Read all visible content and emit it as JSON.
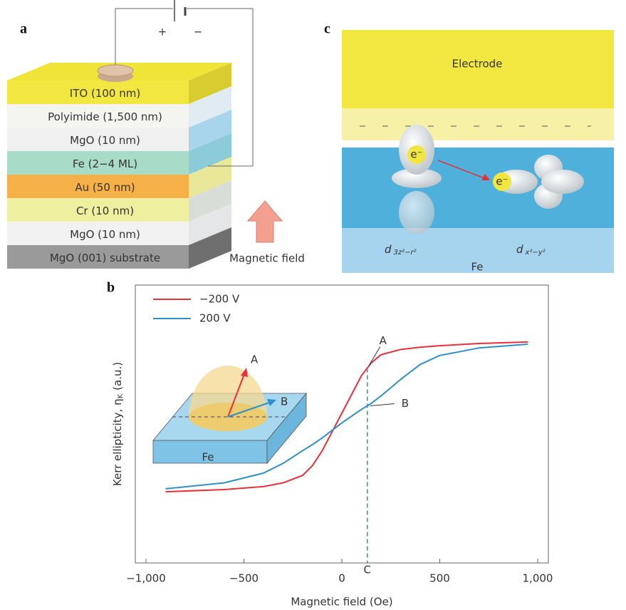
{
  "panel_a": {
    "label": "a",
    "layers": [
      "ITO (100 nm)",
      "Polyimide (1,500 nm)",
      "MgO (10 nm)",
      "Fe (2−4 ML)",
      "Au (50 nm)",
      "Cr (10 nm)",
      "MgO (10 nm)",
      "MgO (001) substrate"
    ],
    "plus": "+",
    "minus": "−",
    "arrow_label": "Magnetic field"
  },
  "panel_c": {
    "label": "c",
    "electrode": "Electrode",
    "electron_left": "e⁻",
    "electron_right": "e⁻",
    "orbital_left": {
      "symbol": "d",
      "subscript": "3z²−r²"
    },
    "orbital_right": {
      "symbol": "d",
      "subscript": "x²−y²"
    },
    "substrate": "Fe"
  },
  "chart_data": {
    "type": "line",
    "panel_label": "b",
    "xlabel": "Magnetic field (Oe)",
    "ylabel": "Kerr ellipticity, η",
    "ylabel_subscript": "K",
    "ylabel_unit": "(a.u.)",
    "x": [
      -900,
      -600,
      -400,
      -300,
      -200,
      -150,
      -100,
      -50,
      0,
      50,
      100,
      150,
      200,
      300,
      400,
      500,
      700,
      950
    ],
    "series": [
      {
        "name": "−200 V",
        "color": "#e8303a",
        "values": [
          -1.0,
          -0.97,
          -0.93,
          -0.88,
          -0.78,
          -0.65,
          -0.45,
          -0.2,
          0.05,
          0.3,
          0.55,
          0.72,
          0.83,
          0.9,
          0.93,
          0.95,
          0.98,
          1.0
        ]
      },
      {
        "name": "200 V",
        "color": "#2f8fc8",
        "values": [
          -0.96,
          -0.88,
          -0.75,
          -0.62,
          -0.45,
          -0.37,
          -0.28,
          -0.18,
          -0.08,
          0.01,
          0.1,
          0.18,
          0.28,
          0.5,
          0.7,
          0.82,
          0.92,
          0.97
        ]
      }
    ],
    "xlim": [
      -1000,
      1000
    ],
    "xticks": [
      {
        "value": -1000,
        "label": "−1,000"
      },
      {
        "value": -500,
        "label": "−500"
      },
      0,
      500,
      {
        "value": 1000,
        "label": "1,000"
      }
    ],
    "ylim": [
      -1.95,
      1.76
    ],
    "annotations": {
      "A": "A",
      "B": "B",
      "C": "C",
      "marker_x": 130
    },
    "inset": {
      "label": "Fe",
      "A": "A",
      "B": "B"
    },
    "legend": "upper left"
  }
}
